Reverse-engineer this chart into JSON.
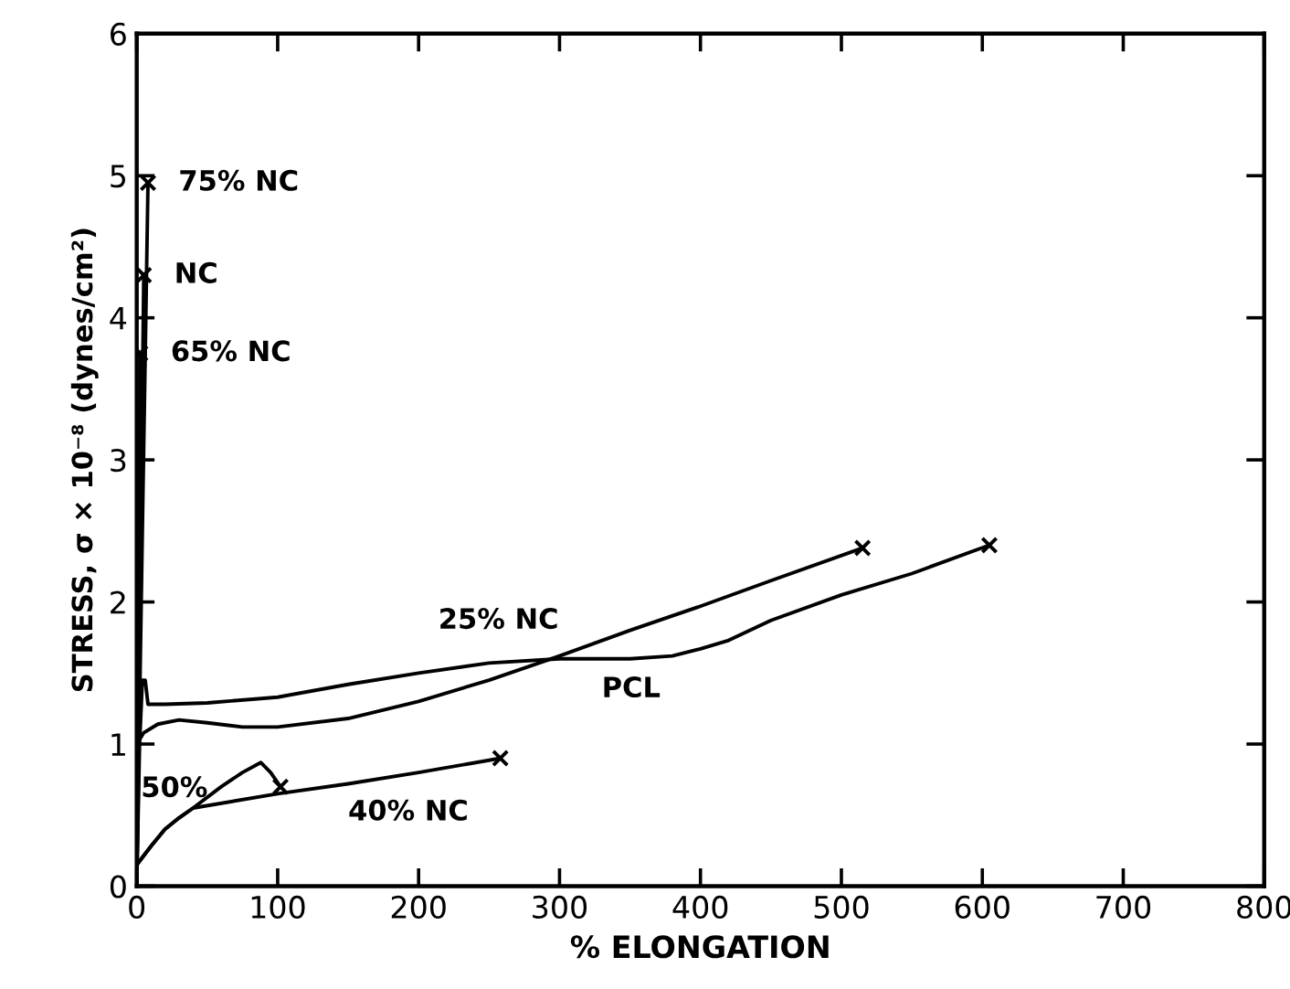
{
  "chart_data": {
    "type": "line",
    "xlabel": "% ELONGATION",
    "ylabel": "STRESS, σ × 10⁻⁸ (dynes/cm²)",
    "xlim": [
      0,
      800
    ],
    "ylim": [
      0,
      6
    ],
    "xticks": [
      0,
      100,
      200,
      300,
      400,
      500,
      600,
      700,
      800
    ],
    "yticks": [
      0,
      1,
      2,
      3,
      4,
      5,
      6
    ],
    "grid": false,
    "legend": false,
    "marker": "none",
    "line_style": "solid",
    "series": [
      {
        "name": "75% NC",
        "color": "#000000",
        "x": [
          0,
          4,
          8
        ],
        "values": [
          0,
          2.5,
          4.95
        ]
      },
      {
        "name": "NC",
        "color": "#000000",
        "x": [
          0,
          2.5,
          5
        ],
        "values": [
          0,
          2.2,
          4.3
        ]
      },
      {
        "name": "65% NC",
        "color": "#000000",
        "x": [
          0,
          1.2,
          2.5
        ],
        "values": [
          0,
          1.9,
          3.75
        ]
      },
      {
        "name": "25% NC",
        "color": "#000000",
        "x": [
          0,
          5,
          15,
          30,
          50,
          75,
          100,
          150,
          200,
          250,
          300,
          350,
          400,
          450,
          515
        ],
        "values": [
          1.0,
          1.08,
          1.14,
          1.17,
          1.15,
          1.12,
          1.12,
          1.18,
          1.3,
          1.45,
          1.62,
          1.8,
          1.97,
          2.15,
          2.38
        ]
      },
      {
        "name": "PCL",
        "color": "#000000",
        "x": [
          0,
          2,
          4,
          6,
          8,
          20,
          50,
          100,
          150,
          200,
          250,
          300,
          350,
          380,
          400,
          420,
          450,
          500,
          550,
          605
        ],
        "values": [
          0,
          1.0,
          1.45,
          1.45,
          1.28,
          1.28,
          1.29,
          1.33,
          1.42,
          1.5,
          1.57,
          1.6,
          1.6,
          1.62,
          1.67,
          1.73,
          1.87,
          2.05,
          2.2,
          2.4
        ]
      },
      {
        "name": "40% NC",
        "color": "#000000",
        "x": [
          0,
          10,
          20,
          30,
          40,
          100,
          150,
          200,
          258
        ],
        "values": [
          0.15,
          0.28,
          0.4,
          0.48,
          0.55,
          0.65,
          0.72,
          0.8,
          0.9
        ]
      },
      {
        "name": "50%",
        "color": "#000000",
        "x": [
          0,
          10,
          20,
          30,
          40,
          60,
          75,
          88,
          95,
          102
        ],
        "values": [
          0.15,
          0.28,
          0.4,
          0.48,
          0.55,
          0.7,
          0.8,
          0.87,
          0.8,
          0.7
        ]
      },
      {
        "type": "scatter",
        "marker": "cross",
        "color": "#000000",
        "x": [
          8,
          5,
          2.5,
          515,
          605,
          258,
          102
        ],
        "values": [
          4.95,
          4.3,
          3.75,
          2.38,
          2.4,
          0.9,
          0.7
        ]
      }
    ]
  }
}
